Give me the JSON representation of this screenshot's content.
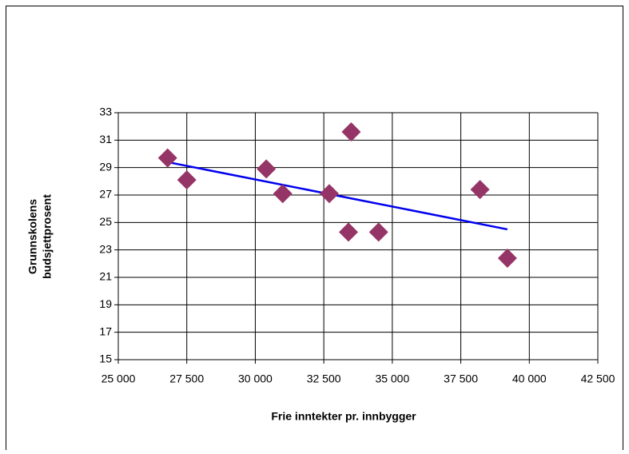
{
  "chart_data": {
    "type": "scatter",
    "x_label": "Frie inntekter pr. innbygger",
    "y_label": [
      "Grunnskolens",
      "budsjettprosent"
    ],
    "x": [
      26800,
      27500,
      30400,
      31000,
      32700,
      33500,
      33400,
      34500,
      38200,
      39200
    ],
    "values": [
      29.7,
      28.1,
      28.9,
      27.1,
      27.1,
      31.6,
      24.3,
      24.3,
      27.4,
      22.4
    ],
    "color": "#953466",
    "trendline": {
      "color": "#0000ee",
      "x": [
        26800,
        39200
      ],
      "values": [
        29.4,
        24.5
      ]
    },
    "xlim": [
      25000,
      42500
    ],
    "xticks": [
      {
        "value": 25000,
        "label": "25 000"
      },
      {
        "value": 27500,
        "label": "27 500"
      },
      {
        "value": 30000,
        "label": "30 000"
      },
      {
        "value": 32500,
        "label": "32 500"
      },
      {
        "value": 35000,
        "label": "35 000"
      },
      {
        "value": 37500,
        "label": "37 500"
      },
      {
        "value": 40000,
        "label": "40 000"
      },
      {
        "value": 42500,
        "label": "42 500"
      }
    ],
    "ylim": [
      15,
      33
    ],
    "yticks": [
      15,
      17,
      19,
      21,
      23,
      25,
      27,
      29,
      31,
      33
    ],
    "grid": true
  }
}
